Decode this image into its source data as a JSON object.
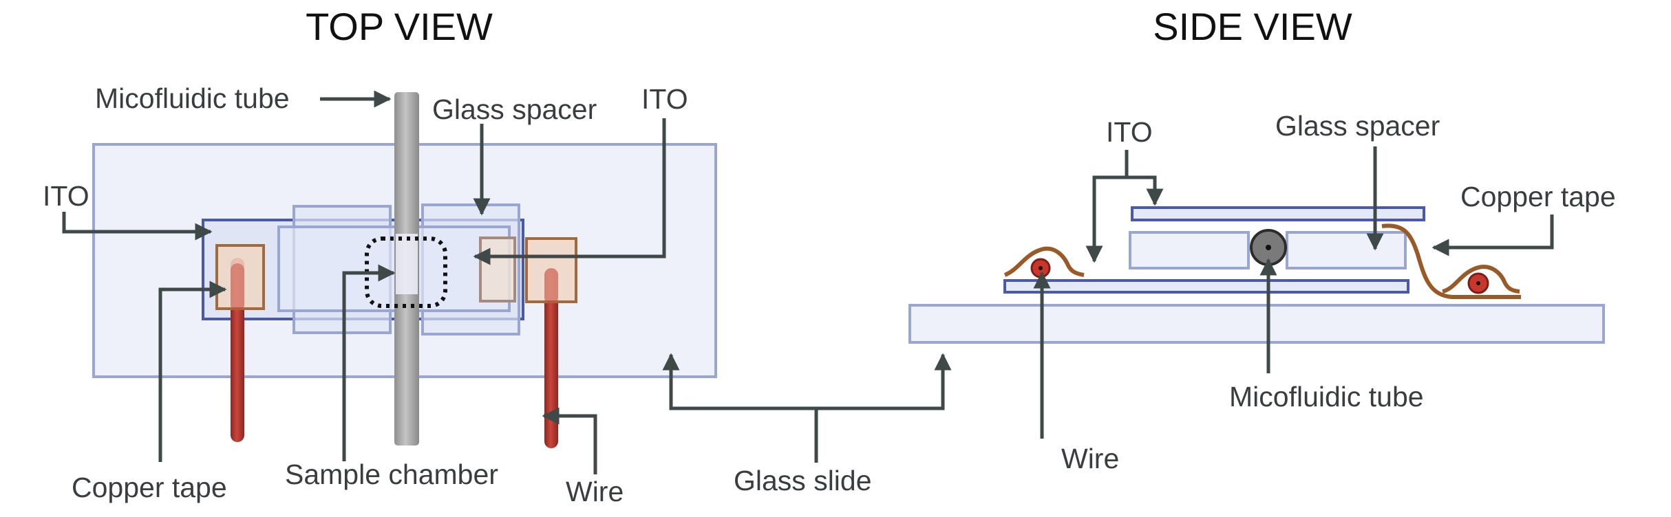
{
  "titles": {
    "top_view": "TOP VIEW",
    "side_view": "SIDE VIEW"
  },
  "top_view_labels": {
    "tube": "Micofluidic tube",
    "glass_spacer": "Glass spacer",
    "ito_right": "ITO",
    "ito_left": "ITO",
    "copper_tape": "Copper tape",
    "sample_chamber": "Sample chamber",
    "wire": "Wire"
  },
  "shared_labels": {
    "glass_slide": "Glass slide"
  },
  "side_view_labels": {
    "ito": "ITO",
    "glass_spacer": "Glass spacer",
    "copper_tape": "Copper tape",
    "tube": "Micofluidic tube",
    "wire": "Wire"
  },
  "colors": {
    "glass_fill": "#eef0fa",
    "glass_stroke": "#9aa6d2",
    "ito_stroke": "#4a5aa8",
    "copper": "#a06a3a",
    "wire_red": "#b0322a",
    "arrow": "#3f4a48",
    "tube_gray": "#a8a8a8"
  }
}
